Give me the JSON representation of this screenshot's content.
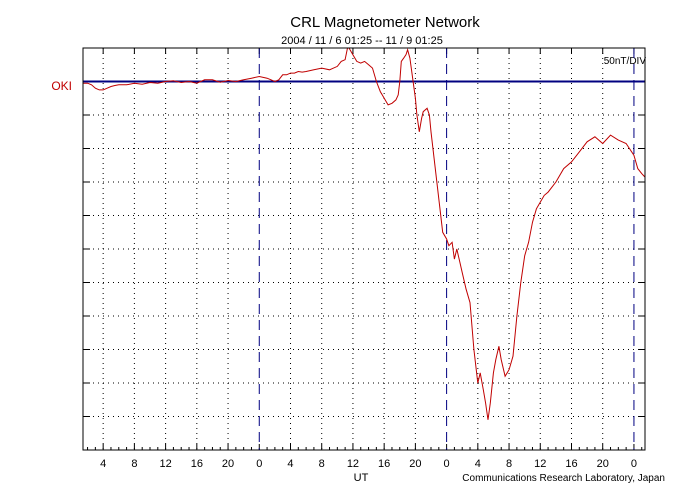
{
  "chart_data": {
    "type": "line",
    "title": "CRL Magnetometer Network",
    "subtitle": "2004 / 11 /  6   01:25 -- 11 /  9   01:25",
    "xlabel": "UT",
    "scale_label": "50nT/DIV",
    "credit": "Communications Research Laboratory, Japan",
    "station": "OKI",
    "x_unit": "hours UT from 2004-11-06 00:00",
    "xlim": [
      1.417,
      73.417
    ],
    "ylim": [
      -11,
      1
    ],
    "y_unit": "DIV (50 nT) relative to the OKI baseline",
    "x_ticks": [
      4,
      8,
      12,
      16,
      20,
      24,
      28,
      32,
      36,
      40,
      44,
      48,
      52,
      56,
      60,
      64,
      68,
      72
    ],
    "x_tick_labels": [
      "4",
      "8",
      "12",
      "16",
      "20",
      "0",
      "4",
      "8",
      "12",
      "16",
      "20",
      "0",
      "4",
      "8",
      "12",
      "16",
      "20",
      "0"
    ],
    "day_boundaries": [
      24,
      48,
      72
    ],
    "grid": true,
    "series": [
      {
        "name": "OKI",
        "color": "#c00000",
        "baseline_color": "#000080",
        "points": [
          [
            1.4,
            -0.05
          ],
          [
            2.0,
            -0.05
          ],
          [
            2.5,
            -0.1
          ],
          [
            3.0,
            -0.2
          ],
          [
            3.5,
            -0.25
          ],
          [
            4.0,
            -0.25
          ],
          [
            4.5,
            -0.2
          ],
          [
            5.0,
            -0.15
          ],
          [
            5.5,
            -0.12
          ],
          [
            6.0,
            -0.1
          ],
          [
            7.0,
            -0.1
          ],
          [
            8.0,
            -0.05
          ],
          [
            9.0,
            -0.08
          ],
          [
            10.0,
            -0.03
          ],
          [
            11.0,
            -0.05
          ],
          [
            12.0,
            0.0
          ],
          [
            13.0,
            0.02
          ],
          [
            14.0,
            -0.03
          ],
          [
            15.0,
            0.0
          ],
          [
            16.0,
            -0.05
          ],
          [
            17.0,
            0.05
          ],
          [
            18.0,
            0.05
          ],
          [
            19.0,
            -0.02
          ],
          [
            20.0,
            0.03
          ],
          [
            21.0,
            0.0
          ],
          [
            22.0,
            0.05
          ],
          [
            23.0,
            0.1
          ],
          [
            24.0,
            0.15
          ],
          [
            25.0,
            0.1
          ],
          [
            26.0,
            0.0
          ],
          [
            26.5,
            0.05
          ],
          [
            27.0,
            0.2
          ],
          [
            27.5,
            0.2
          ],
          [
            28.0,
            0.25
          ],
          [
            28.5,
            0.25
          ],
          [
            29.0,
            0.3
          ],
          [
            29.5,
            0.28
          ],
          [
            30.0,
            0.3
          ],
          [
            31.0,
            0.35
          ],
          [
            32.0,
            0.4
          ],
          [
            33.0,
            0.35
          ],
          [
            34.0,
            0.45
          ],
          [
            34.5,
            0.6
          ],
          [
            35.0,
            0.65
          ],
          [
            35.3,
            1.0
          ],
          [
            35.5,
            1.0
          ],
          [
            36.0,
            0.8
          ],
          [
            36.5,
            0.6
          ],
          [
            37.0,
            0.55
          ],
          [
            37.5,
            0.6
          ],
          [
            38.0,
            0.5
          ],
          [
            38.5,
            0.4
          ],
          [
            39.0,
            0.0
          ],
          [
            39.5,
            -0.3
          ],
          [
            40.0,
            -0.5
          ],
          [
            40.5,
            -0.7
          ],
          [
            41.0,
            -0.65
          ],
          [
            41.5,
            -0.55
          ],
          [
            41.8,
            -0.4
          ],
          [
            42.0,
            0.0
          ],
          [
            42.2,
            0.6
          ],
          [
            42.5,
            0.7
          ],
          [
            42.8,
            0.8
          ],
          [
            43.0,
            0.95
          ],
          [
            43.3,
            0.7
          ],
          [
            43.5,
            0.35
          ],
          [
            44.0,
            -0.5
          ],
          [
            44.2,
            -1.0
          ],
          [
            44.5,
            -1.5
          ],
          [
            44.8,
            -1.1
          ],
          [
            45.0,
            -0.9
          ],
          [
            45.5,
            -0.8
          ],
          [
            45.8,
            -1.0
          ],
          [
            46.0,
            -1.5
          ],
          [
            46.5,
            -2.5
          ],
          [
            47.0,
            -3.5
          ],
          [
            47.5,
            -4.5
          ],
          [
            48.0,
            -4.7
          ],
          [
            48.3,
            -4.9
          ],
          [
            48.7,
            -4.8
          ],
          [
            49.0,
            -5.3
          ],
          [
            49.3,
            -5.0
          ],
          [
            49.7,
            -5.4
          ],
          [
            50.0,
            -5.7
          ],
          [
            50.5,
            -6.2
          ],
          [
            51.0,
            -6.6
          ],
          [
            51.5,
            -8.0
          ],
          [
            52.0,
            -9.0
          ],
          [
            52.3,
            -8.7
          ],
          [
            52.7,
            -9.2
          ],
          [
            53.0,
            -9.6
          ],
          [
            53.3,
            -10.1
          ],
          [
            53.6,
            -9.6
          ],
          [
            54.0,
            -8.7
          ],
          [
            54.3,
            -8.3
          ],
          [
            54.7,
            -7.9
          ],
          [
            55.0,
            -8.3
          ],
          [
            55.5,
            -8.8
          ],
          [
            56.0,
            -8.6
          ],
          [
            56.5,
            -8.2
          ],
          [
            57.0,
            -7.0
          ],
          [
            57.5,
            -6.0
          ],
          [
            58.0,
            -5.2
          ],
          [
            58.5,
            -4.8
          ],
          [
            59.0,
            -4.2
          ],
          [
            59.5,
            -3.8
          ],
          [
            60.0,
            -3.6
          ],
          [
            60.5,
            -3.4
          ],
          [
            61.0,
            -3.3
          ],
          [
            62.0,
            -3.0
          ],
          [
            63.0,
            -2.6
          ],
          [
            64.0,
            -2.4
          ],
          [
            65.0,
            -2.1
          ],
          [
            66.0,
            -1.8
          ],
          [
            67.0,
            -1.65
          ],
          [
            68.0,
            -1.85
          ],
          [
            69.0,
            -1.6
          ],
          [
            70.0,
            -1.75
          ],
          [
            71.0,
            -1.85
          ],
          [
            72.0,
            -2.2
          ],
          [
            72.5,
            -2.6
          ],
          [
            73.0,
            -2.75
          ],
          [
            73.4,
            -2.85
          ]
        ]
      }
    ]
  }
}
